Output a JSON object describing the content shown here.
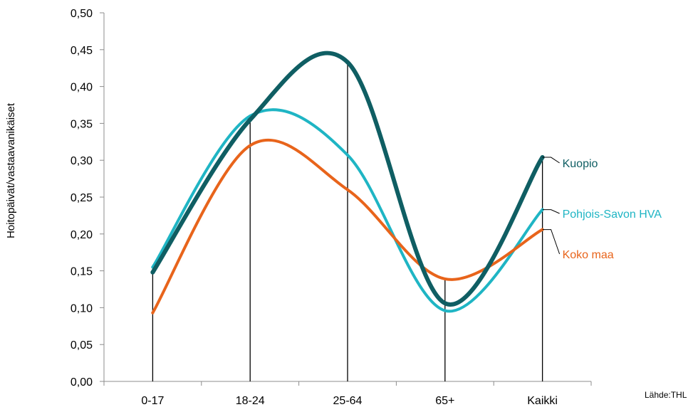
{
  "chart_data": {
    "type": "line",
    "categories": [
      "0-17",
      "18-24",
      "25-64",
      "65+",
      "Kaikki"
    ],
    "series": [
      {
        "name": "Kuopio",
        "values": [
          0.148,
          0.355,
          0.433,
          0.106,
          0.304
        ],
        "color": "#0f5e63"
      },
      {
        "name": "Pohjois-Savon HVA",
        "values": [
          0.155,
          0.36,
          0.307,
          0.096,
          0.233
        ],
        "color": "#1fb5c4"
      },
      {
        "name": "Koko maa",
        "values": [
          0.093,
          0.32,
          0.26,
          0.139,
          0.206
        ],
        "color": "#e8641b"
      }
    ],
    "yticks": [
      "0,00",
      "0,05",
      "0,10",
      "0,15",
      "0,20",
      "0,25",
      "0,30",
      "0,35",
      "0,40",
      "0,45",
      "0,50"
    ],
    "ylim": [
      0,
      0.5
    ],
    "ylabel": "Hoitopäivät/vastaavanikäiset",
    "xlabel": "",
    "title": "",
    "legend": "direct labels at right end of lines",
    "grid": false,
    "source": "Lähde:THL"
  }
}
